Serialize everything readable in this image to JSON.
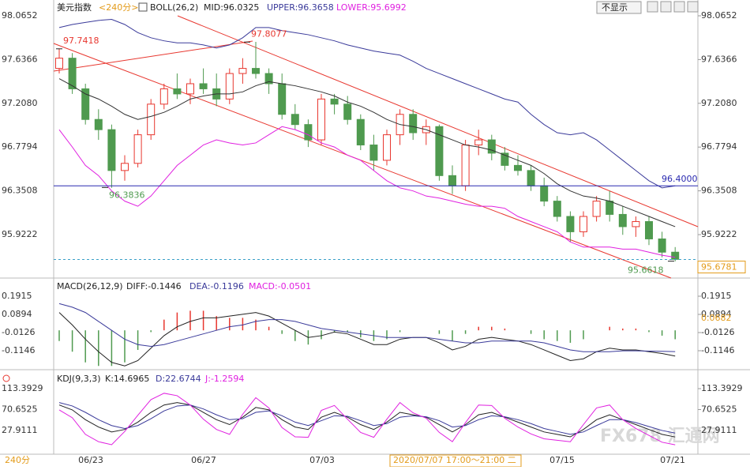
{
  "header": {
    "symbol": "美元指数",
    "period": "<240分>",
    "boll": "BOLL(26,2)",
    "mid": "MID:96.0325",
    "upper": "UPPER:96.3658",
    "lower": "LOWER:95.6992",
    "hide": "不显示"
  },
  "macd_header": {
    "name": "MACD(26,12,9)",
    "diff": "DIFF:-0.1446",
    "dea": "DEA:-0.1196",
    "macd": "MACD:-0.0501"
  },
  "kdj_header": {
    "name": "KDJ(9,3,3)",
    "k": "K:14.6965",
    "d": "D:22.6744",
    "j": "J:-1.2594"
  },
  "x_axis": {
    "labels": [
      "06/23",
      "06/27",
      "07/03",
      "07/15",
      "07/21"
    ],
    "cursor": "2020/07/07 17:00～21:00 二",
    "period": "240分"
  },
  "watermark": "FX678 汇通网",
  "chart_data": [
    {
      "type": "candlestick",
      "ylim": [
        95.5508,
        98.158
      ],
      "yticks": [
        98.0652,
        97.6366,
        {
          "value": 97.208,
          "label": "97.2080"
        },
        96.7794,
        96.3508,
        95.9222
      ],
      "up_color": "#e8372f",
      "down_color": "#4f9a4f",
      "open": [
        97.55,
        97.65,
        97.35,
        97.05,
        96.95,
        96.55,
        96.62,
        96.9,
        97.2,
        97.35,
        97.3,
        97.4,
        97.35,
        97.25,
        97.5,
        97.55,
        97.5,
        97.4,
        97.1,
        97.0,
        96.85,
        97.25,
        97.2,
        97.05,
        96.8,
        96.65,
        96.9,
        97.1,
        96.92,
        96.98,
        96.5,
        96.4,
        96.8,
        96.85,
        96.72,
        96.6,
        96.55,
        96.4,
        96.25,
        96.1,
        95.95,
        96.1,
        96.25,
        96.12,
        96.0,
        96.05,
        95.88,
        95.75
      ],
      "high": [
        97.74,
        97.7,
        97.4,
        97.15,
        97.0,
        96.7,
        96.95,
        97.25,
        97.4,
        97.5,
        97.45,
        97.55,
        97.5,
        97.55,
        97.65,
        97.81,
        97.55,
        97.5,
        97.2,
        97.05,
        97.3,
        97.3,
        97.28,
        97.1,
        96.9,
        96.95,
        97.15,
        97.15,
        97.05,
        97.0,
        96.6,
        96.85,
        96.95,
        96.9,
        96.78,
        96.7,
        96.6,
        96.48,
        96.3,
        96.15,
        96.15,
        96.3,
        96.35,
        96.2,
        96.1,
        96.1,
        95.95,
        95.8
      ],
      "low": [
        97.5,
        97.3,
        97.0,
        96.85,
        96.38,
        96.45,
        96.58,
        96.85,
        97.15,
        97.25,
        97.2,
        97.3,
        97.18,
        97.2,
        97.4,
        97.45,
        97.3,
        97.05,
        96.95,
        96.78,
        96.8,
        97.1,
        97.0,
        96.75,
        96.55,
        96.6,
        96.8,
        96.85,
        96.8,
        96.45,
        96.32,
        96.35,
        96.7,
        96.65,
        96.55,
        96.5,
        96.35,
        96.2,
        96.05,
        95.85,
        95.9,
        96.05,
        96.05,
        95.92,
        95.9,
        95.82,
        95.7,
        95.66
      ],
      "close": [
        97.65,
        97.35,
        97.05,
        96.95,
        96.55,
        96.62,
        96.9,
        97.2,
        97.35,
        97.3,
        97.4,
        97.35,
        97.25,
        97.5,
        97.55,
        97.5,
        97.4,
        97.1,
        97.0,
        96.85,
        97.25,
        97.2,
        97.05,
        96.8,
        96.65,
        96.9,
        97.1,
        96.92,
        96.98,
        96.5,
        96.4,
        96.8,
        96.85,
        96.72,
        96.6,
        96.55,
        96.4,
        96.25,
        96.1,
        95.95,
        96.1,
        96.25,
        96.12,
        96.0,
        96.05,
        95.88,
        95.75,
        95.68
      ],
      "series": [
        {
          "name": "UPPER",
          "color": "#3a3a9a",
          "values": [
            97.95,
            97.98,
            98.0,
            98.02,
            98.03,
            97.98,
            97.9,
            97.85,
            97.82,
            97.8,
            97.8,
            97.78,
            97.75,
            97.78,
            97.85,
            97.95,
            97.95,
            97.92,
            97.9,
            97.88,
            97.85,
            97.82,
            97.78,
            97.75,
            97.72,
            97.7,
            97.68,
            97.62,
            97.55,
            97.5,
            97.45,
            97.4,
            97.35,
            97.3,
            97.25,
            97.22,
            97.1,
            97.0,
            96.92,
            96.9,
            96.92,
            96.85,
            96.75,
            96.65,
            96.55,
            96.45,
            96.38,
            96.4
          ]
        },
        {
          "name": "MID",
          "color": "#333333",
          "values": [
            97.45,
            97.38,
            97.3,
            97.25,
            97.18,
            97.1,
            97.05,
            97.08,
            97.12,
            97.18,
            97.25,
            97.28,
            97.3,
            97.3,
            97.32,
            97.38,
            97.42,
            97.4,
            97.38,
            97.35,
            97.32,
            97.28,
            97.22,
            97.18,
            97.12,
            97.05,
            97.0,
            96.98,
            96.95,
            96.9,
            96.85,
            96.8,
            96.78,
            96.75,
            96.7,
            96.65,
            96.6,
            96.52,
            96.42,
            96.35,
            96.3,
            96.28,
            96.25,
            96.2,
            96.15,
            96.1,
            96.05,
            96.0
          ]
        },
        {
          "name": "LOWER",
          "color": "#e020e0",
          "values": [
            96.95,
            96.78,
            96.6,
            96.5,
            96.35,
            96.25,
            96.2,
            96.3,
            96.45,
            96.6,
            96.7,
            96.8,
            96.85,
            96.82,
            96.8,
            96.82,
            96.9,
            96.98,
            96.95,
            96.9,
            96.82,
            96.78,
            96.7,
            96.65,
            96.55,
            96.45,
            96.38,
            96.35,
            96.3,
            96.28,
            96.25,
            96.22,
            96.2,
            96.2,
            96.18,
            96.1,
            96.05,
            96.0,
            95.95,
            95.85,
            95.8,
            95.8,
            95.8,
            95.78,
            95.78,
            95.75,
            95.72,
            95.7
          ]
        }
      ],
      "hline": {
        "value": 96.4,
        "label": "96.4000"
      },
      "last": 95.6781,
      "markers": [
        97.7418,
        97.8077,
        96.3836,
        95.6618
      ]
    },
    {
      "type": "macd",
      "ylim": [
        -0.2077,
        0.2669
      ],
      "yticks": [
        0.1915,
        0.0894,
        -0.0126,
        -0.1146
      ],
      "last": 0.0682,
      "up_color": "#e8372f",
      "down_color": "#4f9a4f",
      "series": [
        {
          "name": "DIFF",
          "color": "#222222",
          "values": [
            0.1,
            0.03,
            -0.05,
            -0.12,
            -0.18,
            -0.2,
            -0.17,
            -0.1,
            -0.03,
            0.02,
            0.05,
            0.07,
            0.07,
            0.08,
            0.09,
            0.1,
            0.08,
            0.04,
            0.0,
            -0.04,
            -0.03,
            -0.01,
            -0.02,
            -0.05,
            -0.08,
            -0.08,
            -0.05,
            -0.04,
            -0.04,
            -0.07,
            -0.11,
            -0.09,
            -0.05,
            -0.04,
            -0.05,
            -0.06,
            -0.08,
            -0.11,
            -0.14,
            -0.17,
            -0.16,
            -0.12,
            -0.1,
            -0.11,
            -0.11,
            -0.12,
            -0.13,
            -0.1446
          ]
        },
        {
          "name": "DEA",
          "color": "#3a3a9a",
          "values": [
            0.15,
            0.13,
            0.1,
            0.05,
            0.0,
            -0.05,
            -0.08,
            -0.09,
            -0.08,
            -0.06,
            -0.04,
            -0.02,
            0.0,
            0.02,
            0.03,
            0.05,
            0.06,
            0.06,
            0.05,
            0.03,
            0.01,
            0.0,
            -0.01,
            -0.02,
            -0.03,
            -0.04,
            -0.04,
            -0.04,
            -0.04,
            -0.05,
            -0.06,
            -0.07,
            -0.07,
            -0.06,
            -0.06,
            -0.06,
            -0.06,
            -0.07,
            -0.09,
            -0.11,
            -0.12,
            -0.12,
            -0.12,
            -0.115,
            -0.115,
            -0.117,
            -0.118,
            -0.1196
          ]
        }
      ],
      "hist": [
        -0.06,
        -0.12,
        -0.18,
        -0.2,
        -0.2,
        -0.18,
        -0.11,
        -0.01,
        0.06,
        0.1,
        0.11,
        0.11,
        0.08,
        0.07,
        0.07,
        0.06,
        0.02,
        -0.02,
        -0.06,
        -0.08,
        -0.05,
        -0.01,
        -0.01,
        -0.04,
        -0.06,
        -0.05,
        -0.01,
        0,
        0,
        -0.02,
        -0.06,
        -0.02,
        0.02,
        0.02,
        0.01,
        0,
        -0.02,
        -0.05,
        -0.06,
        -0.07,
        -0.05,
        0,
        0.02,
        0.01,
        0.01,
        -0.01,
        -0.03,
        -0.0501
      ]
    },
    {
      "type": "kdj",
      "ylim": [
        -12.41,
        135.97
      ],
      "yticks": [
        113.3929,
        70.6525,
        27.9111
      ],
      "series": [
        {
          "name": "K",
          "color": "#222222",
          "values": [
            80,
            70,
            50,
            35,
            25,
            30,
            45,
            65,
            80,
            85,
            80,
            65,
            50,
            40,
            55,
            75,
            70,
            50,
            35,
            30,
            55,
            65,
            55,
            40,
            30,
            45,
            65,
            60,
            55,
            40,
            25,
            40,
            60,
            65,
            55,
            45,
            35,
            25,
            20,
            15,
            30,
            50,
            60,
            50,
            40,
            30,
            20,
            14.6965
          ]
        },
        {
          "name": "D",
          "color": "#3a3a9a",
          "values": [
            85,
            78,
            65,
            50,
            38,
            32,
            38,
            52,
            68,
            78,
            80,
            72,
            60,
            50,
            52,
            65,
            68,
            58,
            45,
            38,
            48,
            58,
            57,
            48,
            38,
            42,
            55,
            58,
            56,
            48,
            35,
            38,
            50,
            58,
            56,
            50,
            42,
            32,
            26,
            20,
            25,
            38,
            50,
            50,
            44,
            36,
            28,
            22.6744
          ]
        },
        {
          "name": "J",
          "color": "#e020e0",
          "values": [
            70,
            54,
            20,
            5,
            -1,
            26,
            59,
            91,
            104,
            99,
            80,
            51,
            30,
            20,
            61,
            95,
            74,
            34,
            15,
            14,
            69,
            79,
            51,
            24,
            14,
            51,
            85,
            64,
            53,
            24,
            5,
            44,
            80,
            79,
            53,
            35,
            21,
            11,
            8,
            5,
            40,
            74,
            80,
            50,
            32,
            18,
            4,
            -1.2594
          ]
        }
      ]
    }
  ]
}
